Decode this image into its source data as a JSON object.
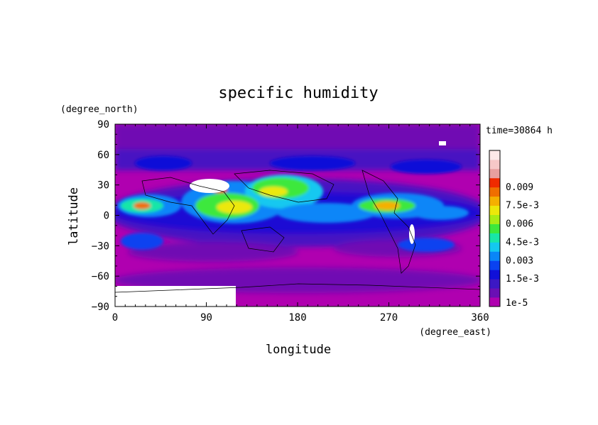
{
  "chart_data": {
    "type": "heatmap",
    "title": "specific humidity",
    "xlabel": "longitude",
    "ylabel": "latitude",
    "x_unit": "(degree_east)",
    "y_unit": "(degree_north)",
    "time_label": "time=30864 h",
    "xlim": [
      0,
      360
    ],
    "ylim": [
      -90,
      90
    ],
    "x_ticks": [
      0,
      90,
      180,
      270,
      360
    ],
    "y_ticks": [
      -90,
      -60,
      -30,
      0,
      30,
      60,
      90
    ],
    "x_tick_labels": [
      "0",
      "90",
      "180",
      "270",
      "360"
    ],
    "y_tick_labels": [
      "−90",
      "−60",
      "−30",
      "0",
      "30",
      "60",
      "90"
    ],
    "colorbar": {
      "labels": [
        "1e-5",
        "1.5e-3",
        "0.003",
        "4.5e-3",
        "0.006",
        "7.5e-3",
        "0.009"
      ],
      "colors": [
        "#b000b0",
        "#6a0fb4",
        "#3c18c4",
        "#1010d8",
        "#0a42f0",
        "#0a86f8",
        "#14c8f0",
        "#18e6a8",
        "#3ce83c",
        "#a8ec14",
        "#ece80a",
        "#f5b000",
        "#f06e00",
        "#f02a00",
        "#e8a0a0",
        "#f6c8c8",
        "#fde9e9"
      ]
    }
  }
}
